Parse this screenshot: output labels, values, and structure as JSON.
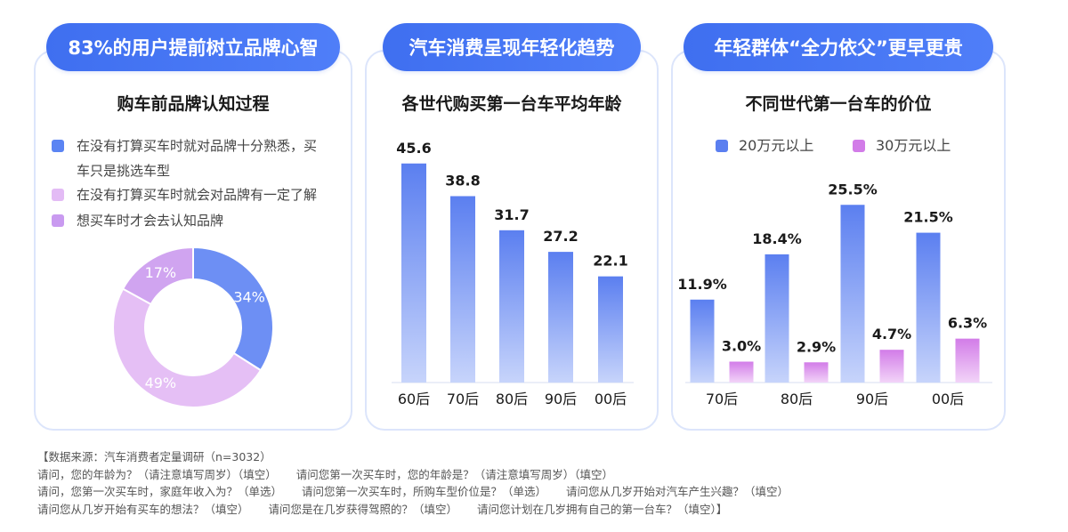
{
  "panels": [
    {
      "pill": "83%的用户提前树立品牌心智",
      "title": "购车前品牌认知过程"
    },
    {
      "pill": "汽车消费呈现年轻化趋势",
      "title": "各世代购买第一台车平均年龄"
    },
    {
      "pill": "年轻群体“全力依父”更早更贵",
      "title": "不同世代第一台车的价位"
    }
  ],
  "legend1": [
    {
      "label_a": "在没有打算买车时就对品牌十分熟悉，买",
      "label_b": "车只是挑选车型",
      "color": "#5b84f3"
    },
    {
      "label_a": "在没有打算买车时就会对品牌有一定了解",
      "color": "#e3bbf5"
    },
    {
      "label_a": "想买车时才会去认知品牌",
      "color": "#c99af0"
    }
  ],
  "legend3": [
    {
      "label": "20万元以上",
      "color": "#5b7ff0"
    },
    {
      "label": "30万元以上",
      "color": "#d27ce8"
    }
  ],
  "chart_data": [
    {
      "type": "pie",
      "title": "购车前品牌认知过程",
      "categories": [
        "在没有打算买车时就对品牌十分熟悉，买车只是挑选车型",
        "在没有打算买车时就会对品牌有一定了解",
        "想买车时才会去认知品牌"
      ],
      "values": [
        34,
        49,
        17
      ],
      "labels": [
        "34%",
        "49%",
        "17%"
      ],
      "colors": [
        "#6d8ff4",
        "#e5bff5",
        "#d0a4f0"
      ]
    },
    {
      "type": "bar",
      "title": "各世代购买第一台车平均年龄",
      "categories": [
        "60后",
        "70后",
        "80后",
        "90后",
        "00后"
      ],
      "values": [
        45.6,
        38.8,
        31.7,
        27.2,
        22.1
      ],
      "labels": [
        "45.6",
        "38.8",
        "31.7",
        "27.2",
        "22.1"
      ],
      "ylim": [
        0,
        50
      ]
    },
    {
      "type": "bar",
      "title": "不同世代第一台车的价位",
      "categories": [
        "70后",
        "80后",
        "90后",
        "00后"
      ],
      "series": [
        {
          "name": "20万元以上",
          "values": [
            11.9,
            18.4,
            25.5,
            21.5
          ],
          "labels": [
            "11.9%",
            "18.4%",
            "25.5%",
            "21.5%"
          ]
        },
        {
          "name": "30万元以上",
          "values": [
            3.0,
            2.9,
            4.7,
            6.3
          ],
          "labels": [
            "3.0%",
            "2.9%",
            "4.7%",
            "6.3%"
          ]
        }
      ],
      "ylim": [
        0,
        30
      ]
    }
  ],
  "footer": {
    "line1": "【数据来源：汽车消费者定量调研（n=3032）",
    "line2a": "请问，您的年龄为？（请注意填写周岁）（填空）",
    "line2b": "请问您第一次买车时，您的年龄是？（请注意填写周岁）（填空）",
    "line3a": "请问，您第一次买车时，家庭年收入为？（单选）",
    "line3b": "请问您第一次买车时，所购车型价位是？（单选）",
    "line3c": "请问您从几岁开始对汽车产生兴趣？（填空）",
    "line4a": "请问您从几岁开始有买车的想法？（填空）",
    "line4b": "请问您是在几岁获得驾照的？（填空）",
    "line4c": "请问您计划在几岁拥有自己的第一台车？（填空）】"
  }
}
